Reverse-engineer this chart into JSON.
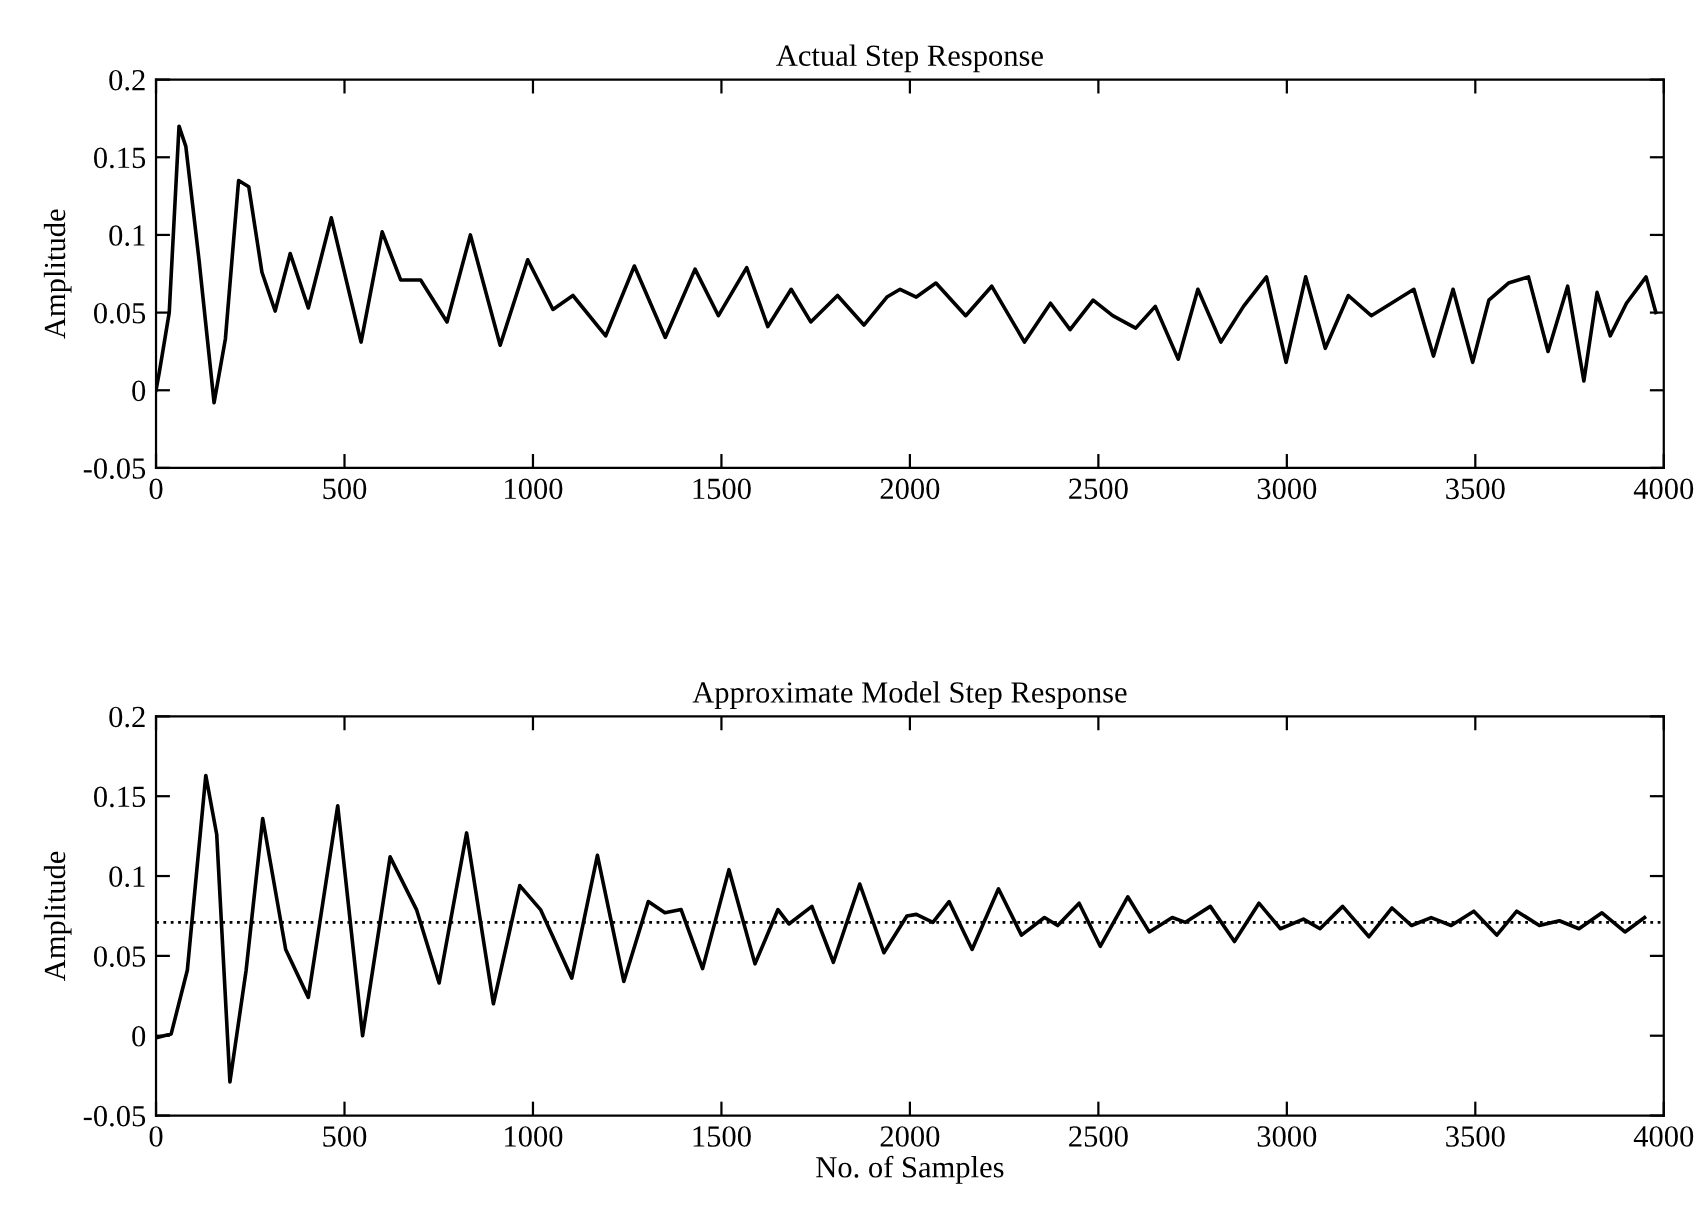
{
  "chart_data": [
    {
      "type": "line",
      "title": "Actual Step Response",
      "ylabel": "Amplitude",
      "xlim": [
        0,
        4000
      ],
      "ylim": [
        -0.05,
        0.2
      ],
      "xticks": [
        0,
        500,
        1000,
        1500,
        2000,
        2500,
        3000,
        3500,
        4000
      ],
      "yticks": [
        -0.05,
        0,
        0.05,
        0.1,
        0.15,
        0.2
      ],
      "grid": false,
      "legend": false,
      "marker": "none",
      "line_style": "solid",
      "series": [
        {
          "color": "#000000",
          "x": [
            0,
            9,
            35,
            61,
            79,
            114,
            154,
            184,
            219,
            246,
            281,
            316,
            356,
            404,
            465,
            544,
            600,
            649,
            702,
            772,
            834,
            913,
            986,
            1053,
            1106,
            1193,
            1269,
            1351,
            1430,
            1492,
            1567,
            1623,
            1685,
            1737,
            1808,
            1878,
            1939,
            1974,
            2017,
            2069,
            2148,
            2217,
            2304,
            2373,
            2425,
            2486,
            2538,
            2599,
            2651,
            2712,
            2764,
            2825,
            2885,
            2946,
            2998,
            3050,
            3102,
            3163,
            3224,
            3337,
            3389,
            3441,
            3493,
            3536,
            3588,
            3641,
            3693,
            3745,
            3788,
            3823,
            3858,
            3901,
            3953,
            3979
          ],
          "values": [
            0,
            0.012,
            0.05,
            0.17,
            0.157,
            0.084,
            -0.008,
            0.033,
            0.135,
            0.131,
            0.076,
            0.051,
            0.088,
            0.053,
            0.111,
            0.031,
            0.102,
            0.071,
            0.071,
            0.044,
            0.1,
            0.029,
            0.084,
            0.052,
            0.061,
            0.035,
            0.08,
            0.034,
            0.078,
            0.048,
            0.079,
            0.041,
            0.065,
            0.044,
            0.061,
            0.042,
            0.06,
            0.065,
            0.06,
            0.069,
            0.048,
            0.067,
            0.031,
            0.056,
            0.039,
            0.058,
            0.048,
            0.04,
            0.054,
            0.02,
            0.065,
            0.031,
            0.054,
            0.073,
            0.018,
            0.073,
            0.027,
            0.061,
            0.048,
            0.065,
            0.022,
            0.065,
            0.018,
            0.058,
            0.069,
            0.073,
            0.025,
            0.067,
            0.006,
            0.063,
            0.035,
            0.056,
            0.073,
            0.05
          ]
        }
      ]
    },
    {
      "type": "line",
      "title": "Approximate Model Step Response",
      "xlabel": "No. of Samples",
      "ylabel": "Amplitude",
      "xlim": [
        0,
        4000
      ],
      "ylim": [
        -0.05,
        0.2
      ],
      "xticks": [
        0,
        500,
        1000,
        1500,
        2000,
        2500,
        3000,
        3500,
        4000
      ],
      "yticks": [
        -0.05,
        0,
        0.05,
        0.1,
        0.15,
        0.2
      ],
      "grid": false,
      "legend": false,
      "marker": "none",
      "line_style": "solid",
      "ref_lines": [
        {
          "axis": "y",
          "value": 0.071,
          "color": "#000000",
          "line_style": "dotted"
        }
      ],
      "series": [
        {
          "color": "#000000",
          "x": [
            5,
            40,
            83,
            132,
            161,
            196,
            239,
            283,
            344,
            404,
            482,
            548,
            621,
            691,
            751,
            824,
            895,
            965,
            1020,
            1103,
            1171,
            1241,
            1306,
            1350,
            1393,
            1450,
            1520,
            1589,
            1650,
            1679,
            1740,
            1797,
            1867,
            1931,
            1992,
            2017,
            2061,
            2104,
            2165,
            2235,
            2296,
            2357,
            2392,
            2449,
            2505,
            2578,
            2635,
            2696,
            2731,
            2797,
            2861,
            2926,
            2983,
            3044,
            3088,
            3148,
            3218,
            3279,
            3331,
            3383,
            3436,
            3496,
            3557,
            3610,
            3670,
            3723,
            3775,
            3836,
            3897,
            3949
          ],
          "values": [
            -0.001,
            0.001,
            0.041,
            0.163,
            0.126,
            -0.029,
            0.041,
            0.136,
            0.054,
            0.024,
            0.144,
            0,
            0.112,
            0.079,
            0.033,
            0.127,
            0.02,
            0.094,
            0.079,
            0.036,
            0.113,
            0.034,
            0.084,
            0.077,
            0.079,
            0.042,
            0.104,
            0.045,
            0.079,
            0.07,
            0.081,
            0.046,
            0.095,
            0.052,
            0.075,
            0.076,
            0.071,
            0.084,
            0.054,
            0.092,
            0.063,
            0.074,
            0.069,
            0.083,
            0.056,
            0.087,
            0.065,
            0.074,
            0.071,
            0.081,
            0.059,
            0.083,
            0.067,
            0.073,
            0.067,
            0.081,
            0.062,
            0.08,
            0.069,
            0.074,
            0.069,
            0.078,
            0.063,
            0.078,
            0.069,
            0.072,
            0.067,
            0.077,
            0.065,
            0.074
          ]
        }
      ]
    }
  ]
}
